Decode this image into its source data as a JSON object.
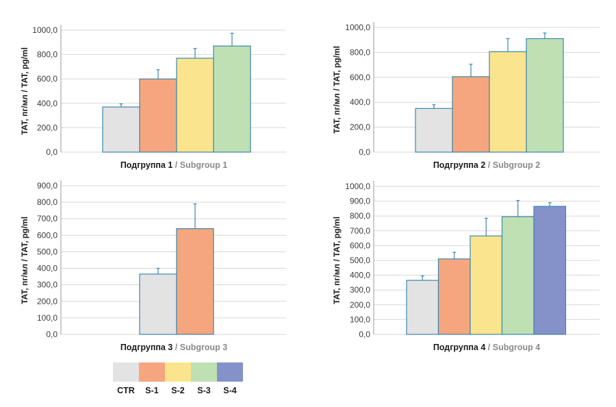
{
  "colors": {
    "CTR": "#e3e3e3",
    "S-1": "#f5a67e",
    "S-2": "#fbe48e",
    "S-3": "#bfe0b3",
    "S-4": "#8591c9",
    "bar_stroke": "#3a86b0",
    "error_bar": "#3a86b0",
    "grid": "#d7d7d7",
    "axis": "#9a9a9a"
  },
  "legend": {
    "items": [
      "CTR",
      "S-1",
      "S-2",
      "S-3",
      "S-4"
    ]
  },
  "chart_data": [
    {
      "type": "bar",
      "title": "",
      "xlabel_ru": "Подгруппа 1",
      "xlabel_sep": " / ",
      "xlabel_en": "Subgroup 1",
      "ylabel": "TAT, пг/мл / TAT, pg/ml",
      "ylim": [
        0,
        1000
      ],
      "yticks": [
        "0,0",
        "200,0",
        "400,0",
        "600,0",
        "800,0",
        "1000,0"
      ],
      "categories": [
        "CTR",
        "S-1",
        "S-2",
        "S-3"
      ],
      "values": [
        370,
        600,
        770,
        870
      ],
      "errors": [
        25,
        75,
        80,
        105
      ],
      "grid": true
    },
    {
      "type": "bar",
      "title": "",
      "xlabel_ru": "Подгруппа 2",
      "xlabel_sep": " / ",
      "xlabel_en": "Subgroup 2",
      "ylabel": "TAT, пг/мл / TAT, pg/ml",
      "ylim": [
        0,
        1000
      ],
      "yticks": [
        "0,0",
        "200,0",
        "400,0",
        "600,0",
        "800,0",
        "1000,0"
      ],
      "categories": [
        "CTR",
        "S-1",
        "S-2",
        "S-3"
      ],
      "values": [
        350,
        605,
        805,
        910
      ],
      "errors": [
        30,
        100,
        105,
        45
      ],
      "grid": true
    },
    {
      "type": "bar",
      "title": "",
      "xlabel_ru": "Подгруппа 3",
      "xlabel_sep": " / ",
      "xlabel_en": "Subgroup 3",
      "ylabel": "TAT, пг/мл / TAT, pg/ml",
      "ylim": [
        0,
        900
      ],
      "yticks": [
        "0,0",
        "100,0",
        "200,0",
        "300,0",
        "400,0",
        "500,0",
        "600,0",
        "700,0",
        "800,0",
        "900,0"
      ],
      "categories": [
        "CTR",
        "S-1"
      ],
      "values": [
        365,
        640
      ],
      "errors": [
        35,
        150
      ],
      "grid": true
    },
    {
      "type": "bar",
      "title": "",
      "xlabel_ru": "Подгруппа 4",
      "xlabel_sep": " / ",
      "xlabel_en": "Subgroup 4",
      "ylabel": "TAT, пг/мл / TAT, pg/ml",
      "ylim": [
        0,
        1000
      ],
      "yticks": [
        "0,0",
        "100,0",
        "200,0",
        "300,0",
        "400,0",
        "500,0",
        "600,0",
        "700,0",
        "800,0",
        "900,0",
        "1000,0"
      ],
      "categories": [
        "CTR",
        "S-1",
        "S-2",
        "S-3",
        "S-4"
      ],
      "values": [
        365,
        510,
        665,
        795,
        865
      ],
      "errors": [
        30,
        45,
        120,
        110,
        25
      ],
      "grid": true
    }
  ]
}
